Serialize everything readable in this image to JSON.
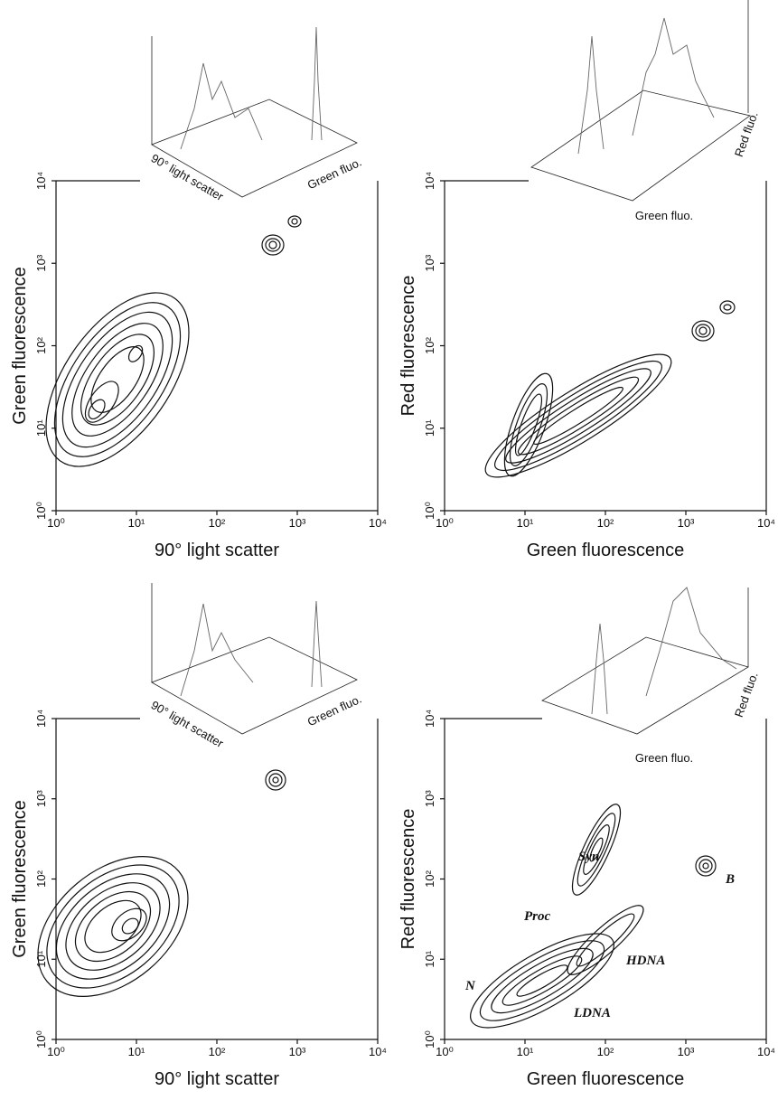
{
  "chart_data": [
    {
      "type": "contour",
      "x_label": "90° light scatter",
      "y_label": "Green fluorescence",
      "log_scale": true,
      "xlim": [
        1,
        10000
      ],
      "ylim": [
        1,
        10000
      ],
      "xticks": [
        {
          "value": 1,
          "label": "10⁰"
        },
        {
          "value": 10,
          "label": "10¹"
        },
        {
          "value": 100,
          "label": "10²"
        },
        {
          "value": 1000,
          "label": "10³"
        },
        {
          "value": 10000,
          "label": "10⁴"
        }
      ],
      "yticks": [
        {
          "value": 1,
          "label": "10⁰"
        },
        {
          "value": 10,
          "label": "10¹"
        },
        {
          "value": 100,
          "label": "10²"
        },
        {
          "value": 1000,
          "label": "10³"
        },
        {
          "value": 10000,
          "label": "10⁴"
        }
      ],
      "inset_labels": [
        "90° light scatter",
        "Green fluo."
      ]
    },
    {
      "type": "contour",
      "x_label": "Green fluorescence",
      "y_label": "Red fluorescence",
      "log_scale": true,
      "xlim": [
        1,
        10000
      ],
      "ylim": [
        1,
        10000
      ],
      "xticks": [
        {
          "value": 1,
          "label": "10⁰"
        },
        {
          "value": 10,
          "label": "10¹"
        },
        {
          "value": 100,
          "label": "10²"
        },
        {
          "value": 1000,
          "label": "10³"
        },
        {
          "value": 10000,
          "label": "10⁴"
        }
      ],
      "yticks": [
        {
          "value": 1,
          "label": "10⁰"
        },
        {
          "value": 10,
          "label": "10¹"
        },
        {
          "value": 100,
          "label": "10²"
        },
        {
          "value": 1000,
          "label": "10³"
        },
        {
          "value": 10000,
          "label": "10⁴"
        }
      ],
      "inset_labels": [
        "Green fluo.",
        "Red fluo."
      ]
    },
    {
      "type": "contour",
      "x_label": "90° light scatter",
      "y_label": "Green fluorescence",
      "log_scale": true,
      "xlim": [
        1,
        10000
      ],
      "ylim": [
        1,
        10000
      ],
      "xticks": [
        {
          "value": 1,
          "label": "10⁰"
        },
        {
          "value": 10,
          "label": "10¹"
        },
        {
          "value": 100,
          "label": "10²"
        },
        {
          "value": 1000,
          "label": "10³"
        },
        {
          "value": 10000,
          "label": "10⁴"
        }
      ],
      "yticks": [
        {
          "value": 1,
          "label": "10⁰"
        },
        {
          "value": 10,
          "label": "10¹"
        },
        {
          "value": 100,
          "label": "10²"
        },
        {
          "value": 1000,
          "label": "10³"
        },
        {
          "value": 10000,
          "label": "10⁴"
        }
      ],
      "inset_labels": [
        "90° light scatter",
        "Green fluo."
      ]
    },
    {
      "type": "contour",
      "x_label": "Green fluorescence",
      "y_label": "Red fluorescence",
      "log_scale": true,
      "xlim": [
        1,
        10000
      ],
      "ylim": [
        1,
        10000
      ],
      "xticks": [
        {
          "value": 1,
          "label": "10⁰"
        },
        {
          "value": 10,
          "label": "10¹"
        },
        {
          "value": 100,
          "label": "10²"
        },
        {
          "value": 1000,
          "label": "10³"
        },
        {
          "value": 10000,
          "label": "10⁴"
        }
      ],
      "yticks": [
        {
          "value": 1,
          "label": "10⁰"
        },
        {
          "value": 10,
          "label": "10¹"
        },
        {
          "value": 100,
          "label": "10²"
        },
        {
          "value": 1000,
          "label": "10³"
        },
        {
          "value": 10000,
          "label": "10⁴"
        }
      ],
      "inset_labels": [
        "Green fluo.",
        "Red fluo."
      ],
      "annotations": [
        "Syn",
        "Proc",
        "HDNA",
        "LDNA",
        "N",
        "B"
      ]
    }
  ]
}
